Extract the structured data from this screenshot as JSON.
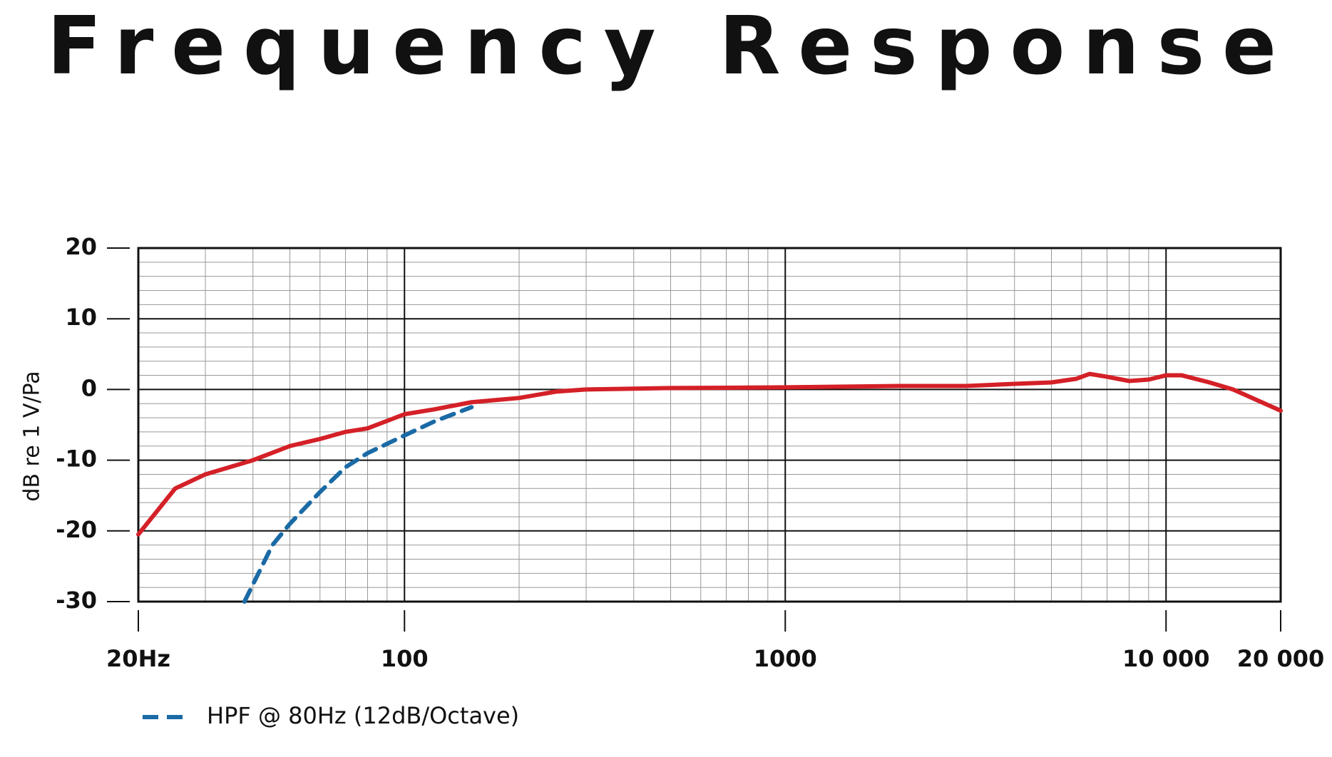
{
  "chart_data": {
    "type": "line",
    "title": "Frequency Response",
    "y_label": "dB re 1 V/Pa",
    "log_x": true,
    "grid": true,
    "xlim": [
      20,
      20000
    ],
    "ylim": [
      -30,
      20
    ],
    "xticks": [
      {
        "value": 20,
        "label": "20Hz"
      },
      100,
      1000,
      {
        "value": 10000,
        "label": "10 000"
      },
      {
        "value": 20000,
        "label": "20 000"
      }
    ],
    "yticks": [
      20,
      10,
      0,
      -10,
      -20,
      -30
    ],
    "series": [
      {
        "color": "#d42027",
        "dash": false,
        "x": [
          20,
          25,
          30,
          40,
          50,
          60,
          70,
          80,
          100,
          120,
          150,
          200,
          250,
          300,
          500,
          1000,
          2000,
          3000,
          4000,
          5000,
          5800,
          6300,
          7000,
          8000,
          9000,
          10000,
          11000,
          13000,
          15000,
          20000
        ],
        "values": [
          -20.5,
          -14,
          -12,
          -10,
          -8,
          -7,
          -6,
          -5.5,
          -3.5,
          -2.8,
          -1.8,
          -1.2,
          -0.3,
          0,
          0.2,
          0.3,
          0.5,
          0.5,
          0.8,
          1,
          1.5,
          2.2,
          1.8,
          1.2,
          1.4,
          2,
          2,
          1,
          0,
          -3
        ]
      },
      {
        "name": "HPF @ 80Hz (12dB/Octave)",
        "color": "#1a6aa5",
        "dash": true,
        "x": [
          38,
          45,
          50,
          60,
          70,
          80,
          100,
          120,
          150
        ],
        "values": [
          -30,
          -22,
          -19,
          -14.5,
          -11,
          -9,
          -6.5,
          -4.5,
          -2.5
        ]
      }
    ]
  }
}
